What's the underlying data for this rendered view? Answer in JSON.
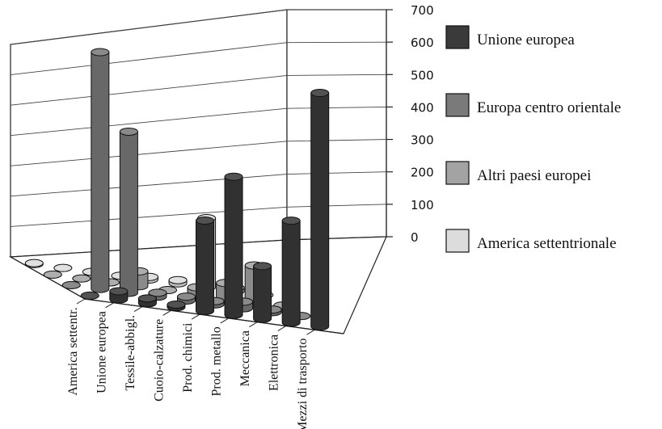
{
  "chart_data": {
    "type": "bar",
    "style": "3d-cylinder",
    "title": "",
    "xlabel": "",
    "ylabel": "",
    "ylim": [
      0,
      700
    ],
    "yticks": [
      "0",
      "100",
      "200",
      "300",
      "400",
      "500",
      "600",
      "700"
    ],
    "grid": true,
    "legend_position": "right",
    "categories": [
      "America settentr.",
      "Unione europea",
      "Tessile-abbigl.",
      "Cuoio-calzature",
      "Prod. chimici",
      "Prod. metallo",
      "Meccanica",
      "Elettronica",
      "Mezzi di trasporto"
    ],
    "series": [
      {
        "name": "Unione europea",
        "color": "#3a3a3a",
        "values": [
          0,
          25,
          15,
          8,
          275,
          420,
          160,
          310,
          710
        ]
      },
      {
        "name": "Europa centro orientale",
        "color": "#7a7a7a",
        "values": [
          0,
          720,
          490,
          12,
          12,
          10,
          20,
          8,
          0
        ]
      },
      {
        "name": "Altri paesi europei",
        "color": "#a3a3a3",
        "values": [
          0,
          0,
          0,
          45,
          0,
          20,
          45,
          110,
          0
        ]
      },
      {
        "name": "America settentrionale",
        "color": "#dcdcdc",
        "values": [
          3,
          0,
          0,
          0,
          8,
          10,
          210,
          10,
          0
        ]
      }
    ]
  }
}
